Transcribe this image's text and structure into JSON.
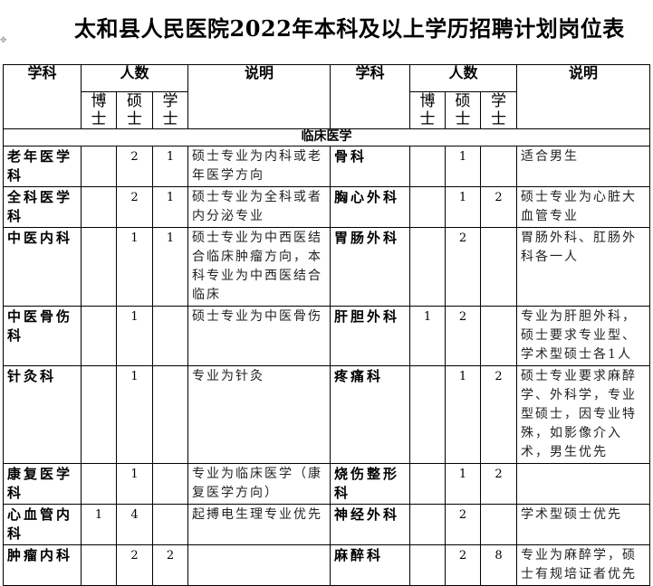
{
  "title": "太和县人民医院2022年本科及以上学历招聘计划岗位表",
  "headers": {
    "subject": "学科",
    "count": "人数",
    "phd": "博士",
    "master": "硕士",
    "bachelor": "学士",
    "note": "说明"
  },
  "section": "临床医学",
  "rows": [
    {
      "left": {
        "subject": "老年医学科",
        "phd": "",
        "master": "2",
        "bachelor": "1",
        "note": "硕士专业为内科或老年医学方向"
      },
      "right": {
        "subject": "骨科",
        "phd": "",
        "master": "1",
        "bachelor": "",
        "note": "适合男生"
      }
    },
    {
      "left": {
        "subject": "全科医学科",
        "phd": "",
        "master": "2",
        "bachelor": "1",
        "note": "硕士专业为全科或者内分泌专业"
      },
      "right": {
        "subject": "胸心外科",
        "phd": "",
        "master": "1",
        "bachelor": "2",
        "note": "硕士专业为心脏大血管专业"
      }
    },
    {
      "left": {
        "subject": "中医内科",
        "phd": "",
        "master": "1",
        "bachelor": "1",
        "note": "硕士专业为中西医结合临床肿瘤方向，本科专业为中西医结合临床"
      },
      "right": {
        "subject": "胃肠外科",
        "phd": "",
        "master": "2",
        "bachelor": "",
        "note": "胃肠外科、肛肠外科各一人"
      }
    },
    {
      "left": {
        "subject": "中医骨伤科",
        "phd": "",
        "master": "1",
        "bachelor": "",
        "note": "硕士专业为中医骨伤"
      },
      "right": {
        "subject": "肝胆外科",
        "phd": "1",
        "master": "2",
        "bachelor": "",
        "note": "专业为肝胆外科，硕士要求专业型、学术型硕士各1人"
      }
    },
    {
      "left": {
        "subject": "针灸科",
        "phd": "",
        "master": "1",
        "bachelor": "",
        "note": "专业为针灸"
      },
      "right": {
        "subject": "疼痛科",
        "phd": "",
        "master": "1",
        "bachelor": "2",
        "note": "硕士专业要求麻醉学、外科学，专业型硕士，因专业特殊，如影像介入术，男生优先"
      }
    },
    {
      "left": {
        "subject": "康复医学科",
        "phd": "",
        "master": "1",
        "bachelor": "",
        "note": "专业为临床医学（康复医学方向）"
      },
      "right": {
        "subject": "烧伤整形科",
        "phd": "",
        "master": "1",
        "bachelor": "2",
        "note": ""
      }
    },
    {
      "left": {
        "subject": "心血管内科",
        "phd": "1",
        "master": "4",
        "bachelor": "",
        "note": "起搏电生理专业优先"
      },
      "right": {
        "subject": "神经外科",
        "phd": "",
        "master": "2",
        "bachelor": "",
        "note": "学术型硕士优先"
      }
    },
    {
      "left": {
        "subject": "肿瘤内科",
        "phd": "",
        "master": "2",
        "bachelor": "2",
        "note": ""
      },
      "right": {
        "subject": "麻醉科",
        "phd": "",
        "master": "2",
        "bachelor": "8",
        "note": "专业为麻醉学，硕士有规培证者优先"
      }
    }
  ]
}
